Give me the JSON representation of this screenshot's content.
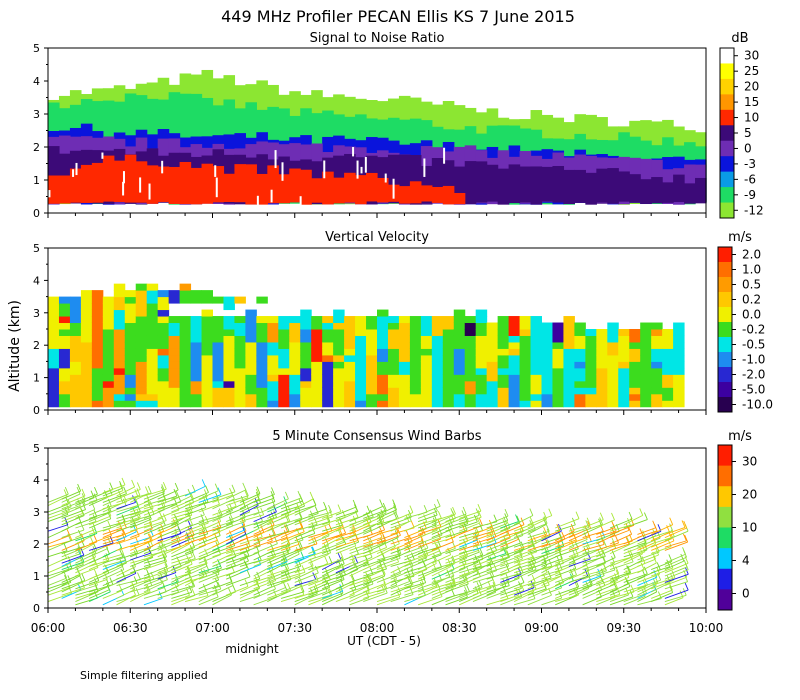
{
  "figure": {
    "title": "449 MHz Profiler PECAN Ellis KS  7 June 2015",
    "ylabel": "Altitude (km)",
    "xlabel": "UT  (CDT - 5)",
    "midnight_label": "midnight",
    "footnote": "Simple filtering applied"
  },
  "x_axis": {
    "range": [
      "06:00",
      "10:00"
    ],
    "ticks": [
      "06:00",
      "06:30",
      "07:00",
      "07:30",
      "08:00",
      "08:30",
      "09:00",
      "09:30",
      "10:00"
    ]
  },
  "chart_data": [
    {
      "type": "heatmap",
      "title": "Signal to Noise Ratio",
      "units": "dB",
      "x_range": [
        "06:00",
        "10:00"
      ],
      "ylim": [
        0,
        5
      ],
      "yticks": [
        "0",
        "1",
        "2",
        "3",
        "4",
        "5"
      ],
      "colorbar": {
        "labels": [
          "30",
          "25",
          "20",
          "15",
          "10",
          "5",
          "0",
          "-3",
          "-6",
          "-9",
          "-12"
        ],
        "colors": [
          "#ffffff",
          "#ffff00",
          "#ffd200",
          "#ff9600",
          "#ff2800",
          "#3c0a78",
          "#6e2db4",
          "#0a14dc",
          "#0a9be6",
          "#1edc64",
          "#8ce632"
        ]
      },
      "layers": [
        {
          "level": "-12",
          "color": "#8ce632",
          "x": [
            "06:00",
            "10:00"
          ],
          "top_km": [
            3.6,
            3.7,
            3.9,
            4.2,
            3.9,
            3.6,
            3.5,
            3.4,
            3.2,
            3.0,
            2.9,
            2.8,
            2.7,
            2.6
          ]
        },
        {
          "level": "-9",
          "color": "#1edc64",
          "x": [
            "06:00",
            "10:00"
          ],
          "top_km": [
            3.3,
            3.5,
            3.6,
            3.4,
            3.2,
            3.0,
            2.9,
            2.8,
            2.6,
            2.5,
            2.4,
            2.3,
            2.2,
            2.1
          ]
        },
        {
          "level": "-3",
          "color": "#0a14dc",
          "x": [
            "06:00",
            "10:00"
          ],
          "top_km": [
            2.6,
            2.5,
            2.4,
            2.3,
            2.3,
            2.2,
            2.2,
            2.1,
            2.0,
            1.9,
            1.8,
            1.7,
            1.6,
            1.5
          ]
        },
        {
          "level": "0",
          "color": "#6e2db4",
          "x": [
            "06:00",
            "10:00"
          ],
          "top_km": [
            2.2,
            2.2,
            2.1,
            2.1,
            2.1,
            2.0,
            2.0,
            1.9,
            1.9,
            1.8,
            1.7,
            1.6,
            1.5,
            1.4
          ]
        },
        {
          "level": "5",
          "color": "#3c0a78",
          "x": [
            "06:00",
            "10:00"
          ],
          "top_km": [
            1.9,
            1.9,
            1.8,
            1.8,
            1.8,
            1.7,
            1.7,
            1.6,
            1.5,
            1.4,
            1.3,
            1.2,
            1.1,
            1.0
          ]
        },
        {
          "level": "10",
          "color": "#ff2800",
          "x": [
            "06:00",
            "08:30"
          ],
          "top_km": [
            1.2,
            1.6,
            1.6,
            1.4,
            1.3,
            1.2,
            1.1,
            0.9,
            0.7
          ]
        }
      ]
    },
    {
      "type": "heatmap",
      "title": "Vertical Velocity",
      "units": "m/s",
      "x_range": [
        "06:00",
        "10:00"
      ],
      "ylim": [
        0,
        5
      ],
      "yticks": [
        "0",
        "1",
        "2",
        "3",
        "4",
        "5"
      ],
      "colorbar": {
        "labels": [
          "2.0",
          "1.0",
          "0.5",
          "0.2",
          "0.0",
          "-0.2",
          "-0.5",
          "-1.0",
          "-2.0",
          "-5.0",
          "-10.0"
        ],
        "colors": [
          "#ff1e00",
          "#ff6e00",
          "#ff9b00",
          "#ffc800",
          "#f0f000",
          "#3cdc1e",
          "#00e6e6",
          "#1e8cf0",
          "#2828d2",
          "#3c00a0",
          "#280050"
        ]
      },
      "top_km": [
        3.4,
        3.6,
        3.8,
        3.6,
        3.3,
        3.1,
        3.0,
        2.9,
        2.9,
        2.8,
        2.7,
        2.6,
        2.5,
        2.4
      ],
      "gap_km": [
        2.9,
        3.2
      ]
    },
    {
      "type": "wind-barbs",
      "title": "5 Minute Consensus Wind Barbs",
      "units": "m/s",
      "x_range": [
        "06:00",
        "10:00"
      ],
      "ylim": [
        0,
        5
      ],
      "yticks": [
        "0",
        "1",
        "2",
        "3",
        "4",
        "5"
      ],
      "colorbar": {
        "labels": [
          "30",
          "20",
          "10",
          "4",
          "0"
        ],
        "colors": [
          "#ff1e00",
          "#ff6e00",
          "#ffc800",
          "#90e040",
          "#1edc64",
          "#00c8ff",
          "#1e1ee6",
          "#50009a"
        ]
      },
      "top_km": [
        3.3,
        3.5,
        3.6,
        3.5,
        3.3,
        3.1,
        3.0,
        2.9,
        2.8,
        2.7,
        2.6,
        2.5,
        2.4,
        2.3
      ],
      "fast_band_km": [
        1.8,
        2.4
      ]
    }
  ]
}
